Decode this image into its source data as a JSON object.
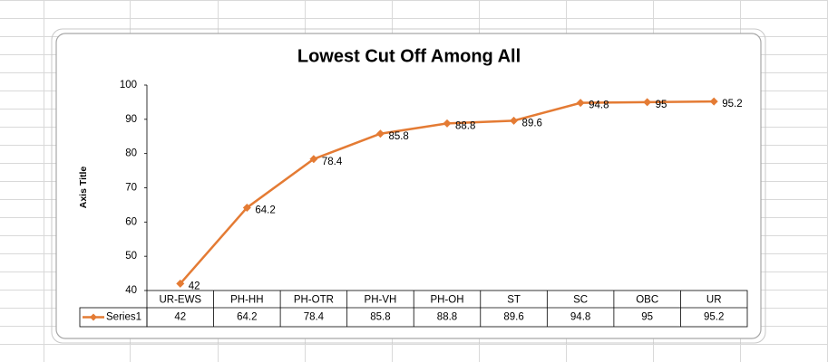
{
  "chart_data": {
    "type": "line",
    "title": "Lowest Cut Off Among All",
    "y_label": "Axis Title",
    "categories": [
      "UR-EWS",
      "PH-HH",
      "PH-OTR",
      "PH-VH",
      "PH-OH",
      "ST",
      "SC",
      "OBC",
      "UR"
    ],
    "series": [
      {
        "name": "Series1",
        "color": "#e47b34",
        "values": [
          42,
          64.2,
          78.4,
          85.8,
          88.8,
          89.6,
          94.8,
          95,
          95.2
        ]
      }
    ],
    "ylim": [
      40,
      100
    ],
    "yticks": [
      40,
      50,
      60,
      70,
      80,
      90,
      100
    ],
    "data_labels": true,
    "data_table": true
  }
}
